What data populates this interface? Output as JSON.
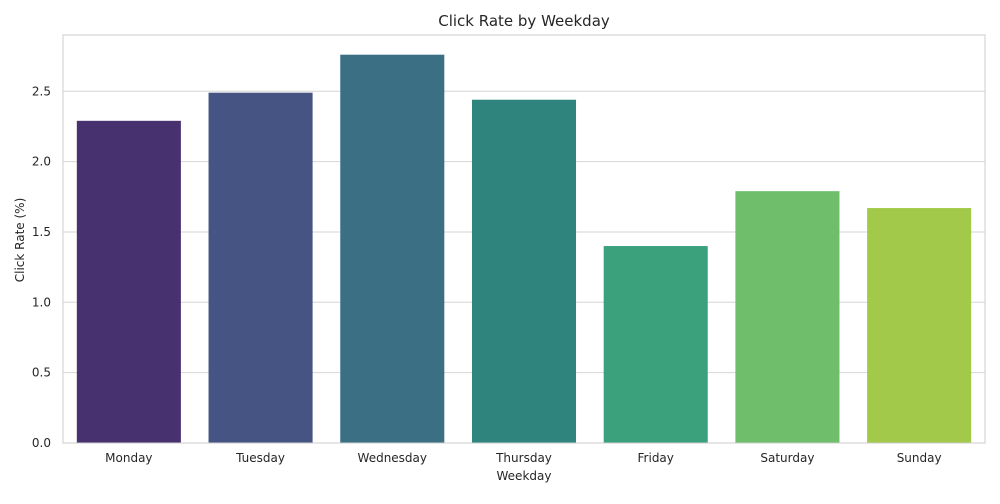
{
  "chart_data": {
    "type": "bar",
    "title": "Click Rate by Weekday",
    "xlabel": "Weekday",
    "ylabel": "Click Rate (%)",
    "categories": [
      "Monday",
      "Tuesday",
      "Wednesday",
      "Thursday",
      "Friday",
      "Saturday",
      "Sunday"
    ],
    "values": [
      2.29,
      2.49,
      2.76,
      2.44,
      1.4,
      1.79,
      1.67
    ],
    "colors": [
      "#48316f",
      "#455482",
      "#3a6f84",
      "#2f857e",
      "#3ba17c",
      "#6ebe6b",
      "#a3c94a"
    ],
    "ylim": [
      0,
      2.9
    ],
    "yticks": [
      0.0,
      0.5,
      1.0,
      1.5,
      2.0,
      2.5
    ],
    "ytick_labels": [
      "0.0",
      "0.5",
      "1.0",
      "1.5",
      "2.0",
      "2.5"
    ],
    "grid": "horizontal",
    "legend": "none",
    "style": {
      "frame_color": "#cccccc",
      "grid_color": "#d6d6d6",
      "text_color": "#262626"
    }
  }
}
